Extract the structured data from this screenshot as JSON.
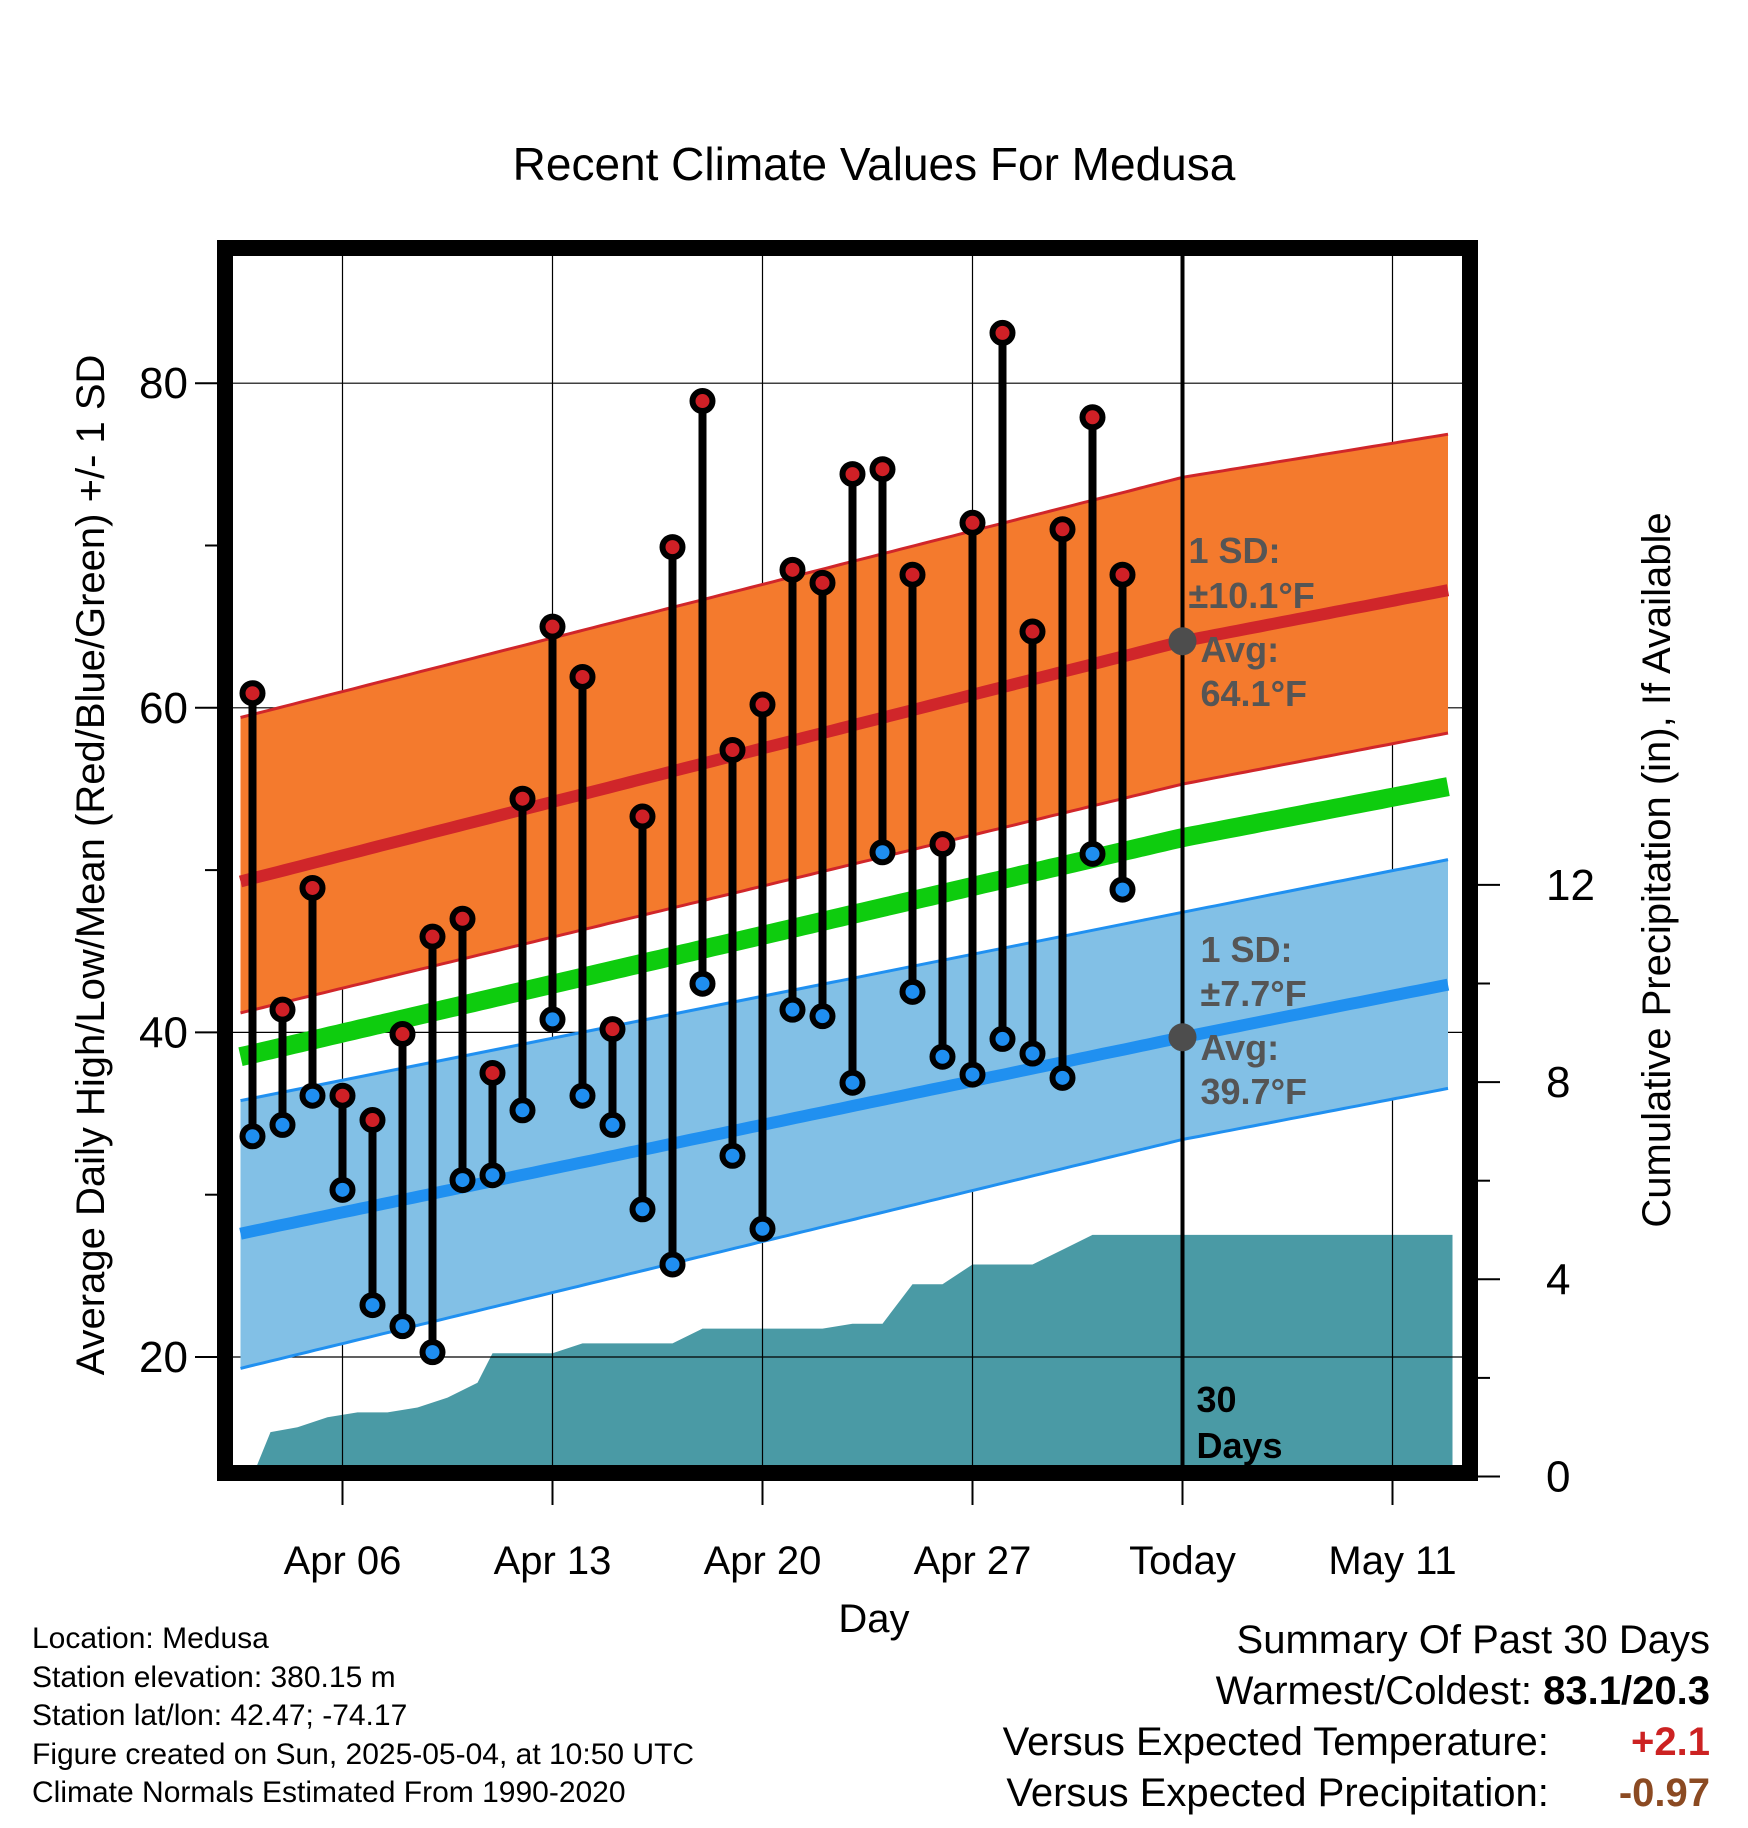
{
  "chart_data": {
    "type": "line",
    "title": "Recent Climate Values For Medusa",
    "xlabel": "Day",
    "ylabel": "Average Daily High/Low/Mean (Red/Blue/Green) +/- 1 SD",
    "y2label": "Cumulative Precipitation (in), If Available",
    "ylim": [
      12,
      87
    ],
    "y2lim": [
      0,
      24
    ],
    "yticks": [
      20,
      40,
      60,
      80
    ],
    "y2ticks": [
      0,
      4,
      8,
      12
    ],
    "x_tick_labels": [
      "Apr 06",
      "Apr 13",
      "Apr 20",
      "Apr 27",
      "Today",
      "May 11"
    ],
    "x_range_days": [
      2.6,
      43.0
    ],
    "x_tick_days": [
      6,
      13,
      20,
      27,
      34,
      41
    ],
    "today_day": 34,
    "grid": true,
    "colors": {
      "high_band": "#f47a2d",
      "high_mean": "#d0262a",
      "low_band": "#82c0e6",
      "low_mean": "#2090f0",
      "avg_mean": "#0ecc0e",
      "precip": "#4a9aa5",
      "high_dot": "#cf2026",
      "low_dot": "#1f8ef0",
      "ann_text": "#555555"
    },
    "normals": {
      "days": [
        2.6,
        34,
        43
      ],
      "high_mean": [
        49.3,
        64.1,
        67.3
      ],
      "high_upper": [
        59.4,
        74.2,
        76.9
      ],
      "high_lower": [
        41.2,
        55.3,
        58.5
      ],
      "low_mean": [
        27.6,
        39.7,
        43.0
      ],
      "low_upper": [
        35.8,
        47.4,
        50.7
      ],
      "low_lower": [
        19.3,
        33.4,
        36.6
      ],
      "avg_mean": [
        38.5,
        52.0,
        55.2
      ]
    },
    "daily": [
      {
        "day": 3,
        "high": 60.9,
        "low": 33.6
      },
      {
        "day": 4,
        "high": 41.4,
        "low": 34.3
      },
      {
        "day": 5,
        "high": 48.9,
        "low": 36.1
      },
      {
        "day": 6,
        "high": 36.1,
        "low": 30.3
      },
      {
        "day": 7,
        "high": 34.6,
        "low": 23.2
      },
      {
        "day": 8,
        "high": 39.9,
        "low": 21.9
      },
      {
        "day": 9,
        "high": 45.9,
        "low": 20.3
      },
      {
        "day": 10,
        "high": 47.0,
        "low": 30.9
      },
      {
        "day": 11,
        "high": 37.5,
        "low": 31.2
      },
      {
        "day": 12,
        "high": 54.4,
        "low": 35.2
      },
      {
        "day": 13,
        "high": 65.0,
        "low": 40.8
      },
      {
        "day": 14,
        "high": 61.9,
        "low": 36.1
      },
      {
        "day": 15,
        "high": 40.2,
        "low": 34.3
      },
      {
        "day": 16,
        "high": 53.3,
        "low": 29.1
      },
      {
        "day": 17,
        "high": 69.9,
        "low": 25.7
      },
      {
        "day": 18,
        "high": 78.9,
        "low": 43.0
      },
      {
        "day": 19,
        "high": 57.4,
        "low": 32.4
      },
      {
        "day": 20,
        "high": 60.2,
        "low": 27.9
      },
      {
        "day": 21,
        "high": 68.5,
        "low": 41.4
      },
      {
        "day": 22,
        "high": 67.7,
        "low": 41.0
      },
      {
        "day": 23,
        "high": 74.4,
        "low": 36.9
      },
      {
        "day": 24,
        "high": 74.7,
        "low": 51.1
      },
      {
        "day": 25,
        "high": 68.2,
        "low": 42.5
      },
      {
        "day": 26,
        "high": 51.6,
        "low": 38.5
      },
      {
        "day": 27,
        "high": 71.4,
        "low": 37.4
      },
      {
        "day": 28,
        "high": 83.1,
        "low": 39.6
      },
      {
        "day": 29,
        "high": 64.7,
        "low": 38.7
      },
      {
        "day": 30,
        "high": 71.0,
        "low": 37.2
      },
      {
        "day": 31,
        "high": 77.9,
        "low": 51.0
      },
      {
        "day": 32,
        "high": 68.2,
        "low": 48.8
      }
    ],
    "precip_cumulative": [
      {
        "day": 3.0,
        "value": 0.0
      },
      {
        "day": 3.6,
        "value": 0.9
      },
      {
        "day": 4.5,
        "value": 1.0
      },
      {
        "day": 5.5,
        "value": 1.2
      },
      {
        "day": 6.5,
        "value": 1.3
      },
      {
        "day": 7.5,
        "value": 1.3
      },
      {
        "day": 8.5,
        "value": 1.4
      },
      {
        "day": 9.5,
        "value": 1.6
      },
      {
        "day": 10.5,
        "value": 1.9
      },
      {
        "day": 11.0,
        "value": 2.5
      },
      {
        "day": 13.0,
        "value": 2.5
      },
      {
        "day": 14.0,
        "value": 2.7
      },
      {
        "day": 17.0,
        "value": 2.7
      },
      {
        "day": 18.0,
        "value": 3.0
      },
      {
        "day": 22.0,
        "value": 3.0
      },
      {
        "day": 23.0,
        "value": 3.1
      },
      {
        "day": 24.0,
        "value": 3.1
      },
      {
        "day": 25.0,
        "value": 3.9
      },
      {
        "day": 26.0,
        "value": 3.9
      },
      {
        "day": 27.0,
        "value": 4.3
      },
      {
        "day": 29.0,
        "value": 4.3
      },
      {
        "day": 30.0,
        "value": 4.6
      },
      {
        "day": 31.0,
        "value": 4.9
      },
      {
        "day": 33.0,
        "value": 4.9
      },
      {
        "day": 43.0,
        "value": 4.9
      }
    ],
    "annotations": {
      "high_sd_label": "1 SD:",
      "high_sd_value": "±10.1°F",
      "high_avg_label": "Avg:",
      "high_avg_value": "64.1°F",
      "low_sd_label": "1 SD:",
      "low_sd_value": "±7.7°F",
      "low_avg_label": "Avg:",
      "low_avg_value": "39.7°F",
      "days_count": "30",
      "days_word": "Days"
    }
  },
  "footer": {
    "location": "Location: Medusa",
    "elevation": "Station elevation: 380.15 m",
    "latlon": "Station lat/lon: 42.47; -74.17",
    "created": "Figure created on Sun, 2025-05-04, at 10:50 UTC",
    "normals": "Climate Normals Estimated From 1990-2020"
  },
  "summary": {
    "heading": "Summary Of Past 30 Days",
    "warm_cold_label": "Warmest/Coldest:",
    "warm_cold_value": "83.1/20.3",
    "temp_label": "Versus Expected Temperature:",
    "temp_value": "+2.1",
    "temp_color": "#cc2222",
    "precip_label": "Versus Expected Precipitation:",
    "precip_value": "-0.97",
    "precip_color": "#8b4a22"
  }
}
